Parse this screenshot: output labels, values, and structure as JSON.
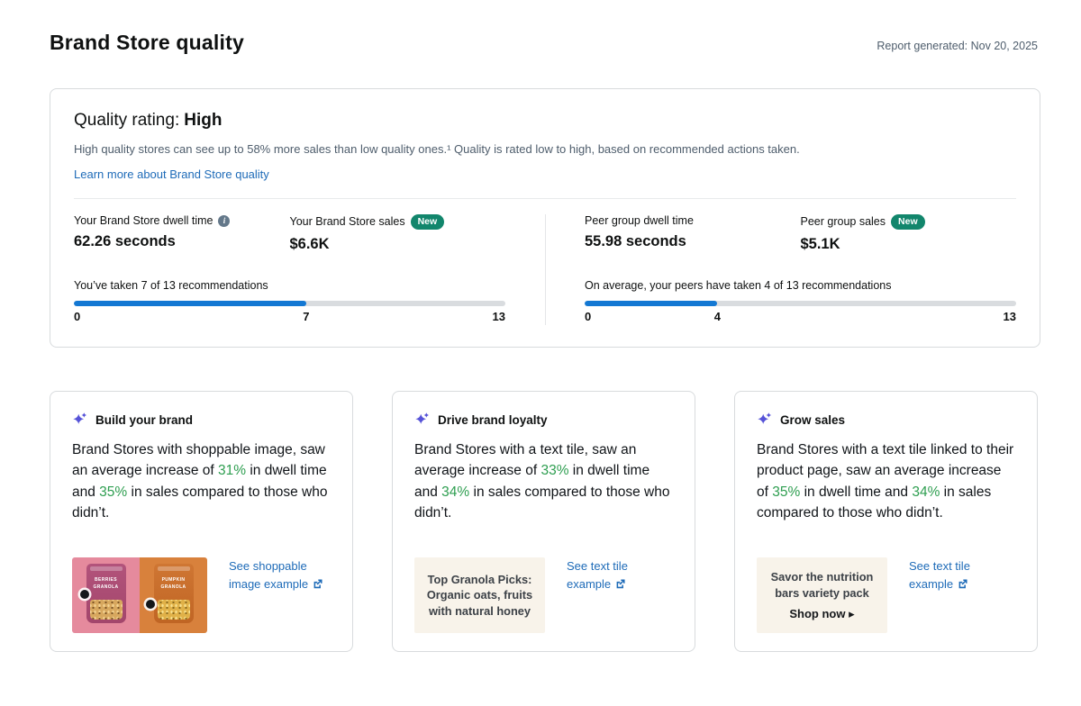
{
  "colors": {
    "link_blue": "#1e6bb8",
    "progress_blue": "#1378d3",
    "badge_green": "#12866c",
    "highlight_green": "#2e9e50",
    "sparkle_indigo": "#5653d8",
    "tile_cream": "#f8f3ea",
    "image_pink_bg": "#e58a9d",
    "image_orange_bg": "#d8813c"
  },
  "page": {
    "title": "Brand Store quality",
    "report_generated": "Report generated: Nov 20, 2025"
  },
  "quality_card": {
    "rating_label": "Quality rating:",
    "rating_value": "High",
    "description": "High quality stores can see up to 58% more sales than low quality ones.¹ Quality is rated low to high, based on recommended actions taken.",
    "learn_more_link": "Learn more about Brand Store quality",
    "metrics": {
      "your_dwell": {
        "label": "Your Brand Store dwell time",
        "value": "62.26 seconds"
      },
      "your_sales": {
        "label": "Your Brand Store sales",
        "badge": "New",
        "value": "$6.6K"
      },
      "peer_dwell": {
        "label": "Peer group dwell time",
        "value": "55.98 seconds"
      },
      "peer_sales": {
        "label": "Peer group sales",
        "badge": "New",
        "value": "$5.1K"
      }
    },
    "progress_yours": {
      "label": "You’ve taken 7 of 13 recommendations",
      "min": 0,
      "value": 7,
      "max": 13
    },
    "progress_peers": {
      "label": "On average, your peers have taken 4 of 13 recommendations",
      "min": 0,
      "value": 4,
      "max": 13
    }
  },
  "cards": [
    {
      "title": "Build your brand",
      "segments": [
        {
          "text": "Brand Stores with shoppable image, saw an average increase of "
        },
        {
          "text": "31%",
          "highlight": true
        },
        {
          "text": " in dwell time and "
        },
        {
          "text": "35%",
          "highlight": true
        },
        {
          "text": " in sales compared to those who didn’t."
        }
      ],
      "link_label": "See shoppable image example",
      "visual": {
        "type": "shoppable-image",
        "products": [
          "Berries Granola",
          "Pumpkin Granola"
        ]
      }
    },
    {
      "title": "Drive brand loyalty",
      "segments": [
        {
          "text": "Brand Stores with a text tile, saw an average increase of "
        },
        {
          "text": "33%",
          "highlight": true
        },
        {
          "text": " in dwell time and "
        },
        {
          "text": "34%",
          "highlight": true
        },
        {
          "text": " in sales compared to those who didn’t."
        }
      ],
      "link_label": "See text tile example",
      "visual": {
        "type": "text-tile",
        "text": "Top Granola Picks: Organic oats, fruits with natural honey"
      }
    },
    {
      "title": "Grow sales",
      "segments": [
        {
          "text": "Brand Stores with a text tile linked to their product page, saw an average increase of "
        },
        {
          "text": "35%",
          "highlight": true
        },
        {
          "text": " in dwell time and "
        },
        {
          "text": "34%",
          "highlight": true
        },
        {
          "text": " in sales compared to those who didn’t."
        }
      ],
      "link_label": "See text tile example",
      "visual": {
        "type": "text-tile",
        "text": "Savor the nutrition bars variety pack",
        "cta": "Shop now ▸"
      }
    }
  ]
}
